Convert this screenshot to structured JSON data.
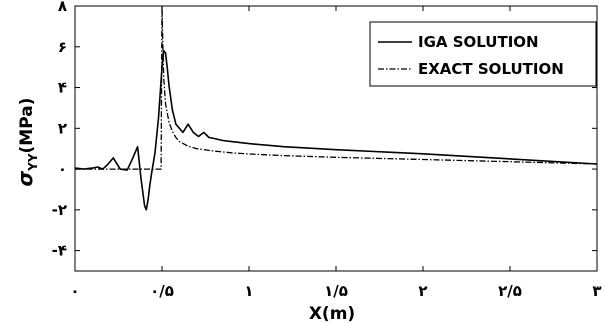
{
  "chart_data": {
    "type": "line",
    "xlabel": "X(m)",
    "ylabel": {
      "base": "σ",
      "sub": "YY",
      "rest": "(MPa)"
    },
    "xlim": [
      0,
      3
    ],
    "ylim": [
      -5,
      8
    ],
    "xticks": [
      {
        "value": 0,
        "label": "۰"
      },
      {
        "value": 0.5,
        "label": "۰/۵"
      },
      {
        "value": 1,
        "label": "۱"
      },
      {
        "value": 1.5,
        "label": "۱/۵"
      },
      {
        "value": 2,
        "label": "۲"
      },
      {
        "value": 2.5,
        "label": "۲/۵"
      },
      {
        "value": 3,
        "label": "۳"
      }
    ],
    "yticks": [
      {
        "value": -4,
        "label": "-۴"
      },
      {
        "value": -2,
        "label": "-۲"
      },
      {
        "value": 0,
        "label": "۰"
      },
      {
        "value": 2,
        "label": "۲"
      },
      {
        "value": 4,
        "label": "۴"
      },
      {
        "value": 6,
        "label": "۶"
      },
      {
        "value": 8,
        "label": "۸"
      }
    ],
    "legend_position": "top-right",
    "grid": false,
    "series": [
      {
        "name": "IGA SOLUTION",
        "style": "solid",
        "color": "#000000",
        "x": [
          0,
          0.05,
          0.1,
          0.13,
          0.16,
          0.19,
          0.22,
          0.26,
          0.3,
          0.33,
          0.36,
          0.38,
          0.4,
          0.41,
          0.42,
          0.43,
          0.44,
          0.46,
          0.48,
          0.5,
          0.51,
          0.52,
          0.53,
          0.54,
          0.56,
          0.58,
          0.6,
          0.62,
          0.65,
          0.68,
          0.71,
          0.74,
          0.77,
          0.8,
          0.85,
          0.9,
          1.0,
          1.2,
          1.5,
          2.0,
          2.5,
          3.0
        ],
        "y": [
          0.05,
          0.0,
          0.05,
          0.1,
          0.0,
          0.25,
          0.55,
          0.0,
          -0.05,
          0.5,
          1.1,
          -0.5,
          -1.8,
          -2.0,
          -1.5,
          -0.8,
          -0.2,
          0.8,
          2.5,
          5.0,
          5.8,
          5.7,
          5.0,
          4.1,
          2.9,
          2.2,
          2.0,
          1.8,
          2.2,
          1.8,
          1.6,
          1.8,
          1.55,
          1.5,
          1.4,
          1.35,
          1.25,
          1.1,
          0.95,
          0.75,
          0.5,
          0.25
        ]
      },
      {
        "name": "EXACT SOLUTION",
        "style": "dashdot",
        "color": "#000000",
        "x": [
          0,
          0.1,
          0.2,
          0.3,
          0.4,
          0.49,
          0.495,
          0.5,
          0.505,
          0.51,
          0.52,
          0.54,
          0.56,
          0.58,
          0.6,
          0.65,
          0.7,
          0.8,
          0.9,
          1.0,
          1.2,
          1.5,
          2.0,
          2.5,
          3.0
        ],
        "y": [
          0,
          0,
          0,
          0,
          0,
          0,
          0,
          8,
          6.0,
          4.5,
          3.2,
          2.3,
          1.85,
          1.55,
          1.35,
          1.12,
          1.0,
          0.88,
          0.8,
          0.74,
          0.66,
          0.58,
          0.47,
          0.36,
          0.25
        ]
      }
    ]
  }
}
